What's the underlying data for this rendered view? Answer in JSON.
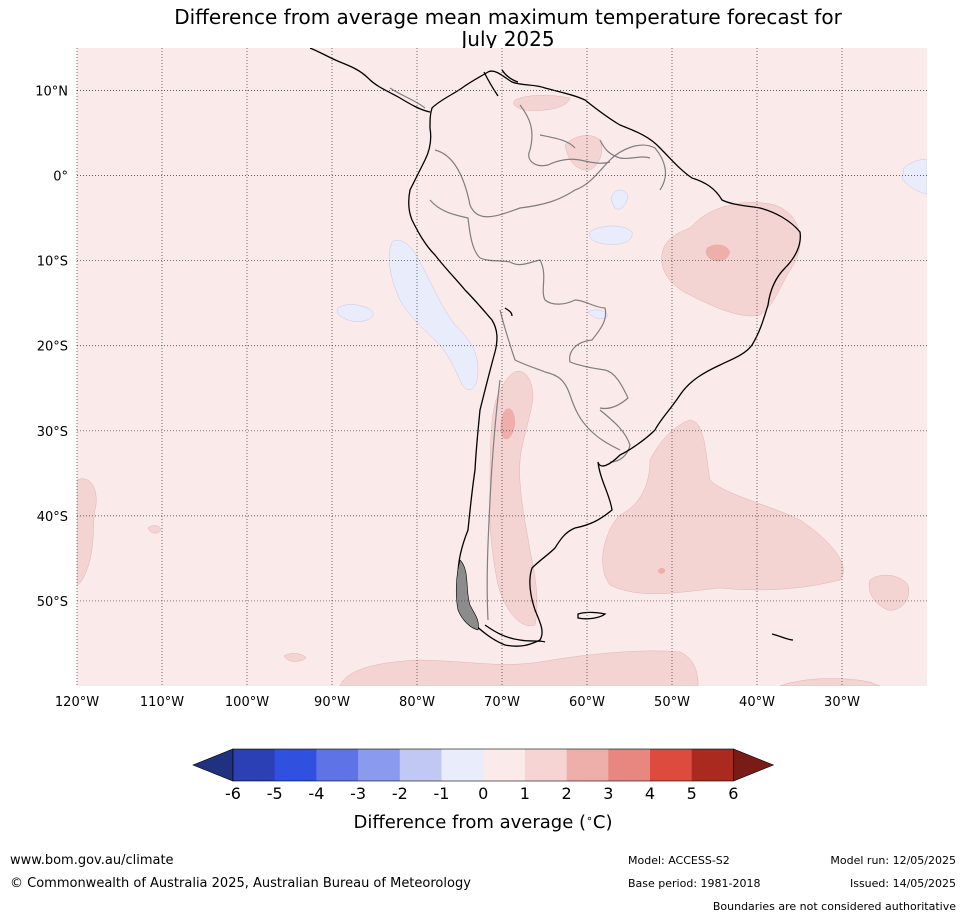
{
  "title": {
    "line1": "Difference from average mean maximum temperature forecast for",
    "line2": "July 2025"
  },
  "map": {
    "lat_labels": [
      "10°N",
      "0°",
      "10°S",
      "20°S",
      "30°S",
      "40°S",
      "50°S"
    ],
    "lon_labels": [
      "120°W",
      "110°W",
      "100°W",
      "90°W",
      "80°W",
      "70°W",
      "60°W",
      "50°W",
      "40°W",
      "30°W"
    ],
    "extent": {
      "lon_min": -120,
      "lon_max": -20,
      "lat_min": -60,
      "lat_max": 15
    },
    "background_anomaly": "0 to 1",
    "regions_warm_1_2": [
      "northeast Brazil",
      "western Argentina",
      "South Atlantic east of Argentina",
      "southern ocean south of Tierra del Fuego"
    ],
    "regions_warm_2_3": [
      "northeast Brazil core",
      "central-west Argentina Andes"
    ],
    "regions_cool_-1_0": [
      "Pacific off Peru",
      "Amazon basin patch",
      "Atlantic off equator east"
    ]
  },
  "colorbar": {
    "title": "Difference from average (°C)",
    "title_main": "Difference from average (",
    "title_unit": "∘",
    "title_end": "C)",
    "tick_labels": [
      "-6",
      "-5",
      "-4",
      "-3",
      "-2",
      "-1",
      "0",
      "1",
      "2",
      "3",
      "4",
      "5",
      "6"
    ],
    "colors": [
      "#20327f",
      "#2a40b4",
      "#3050e0",
      "#5e74e6",
      "#8a9aee",
      "#c1c8f4",
      "#e9ecfb",
      "#fbeaea",
      "#f7d4d4",
      "#eeaeaa",
      "#e88680",
      "#dc4b3e",
      "#ab2a1f",
      "#7a1c16"
    ]
  },
  "footer": {
    "website": "www.bom.gov.au/climate",
    "copyright": "© Commonwealth of Australia 2025, Australian Bureau of Meteorology",
    "model": "Model: ACCESS-S2",
    "base_period": "Base period: 1981-2018",
    "model_run": "Model run: 12/05/2025",
    "issued": "Issued: 14/05/2025",
    "disclaimer": "Boundaries are not considered authoritative"
  }
}
